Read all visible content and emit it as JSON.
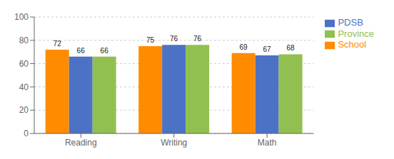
{
  "chart_data": {
    "type": "bar",
    "categories": [
      "Reading",
      "Writing",
      "Math"
    ],
    "series": [
      {
        "name": "School",
        "color": "#FF8C00",
        "values": [
          72,
          75,
          69
        ]
      },
      {
        "name": "PDSB",
        "color": "#4B72C4",
        "values": [
          66,
          76,
          67
        ]
      },
      {
        "name": "Province",
        "color": "#92C050",
        "values": [
          66,
          76,
          68
        ]
      }
    ],
    "ylim": [
      0,
      100
    ],
    "yticks": [
      0,
      20,
      40,
      60,
      80,
      100
    ],
    "grid": true,
    "legend": "right",
    "data_labels": true
  }
}
